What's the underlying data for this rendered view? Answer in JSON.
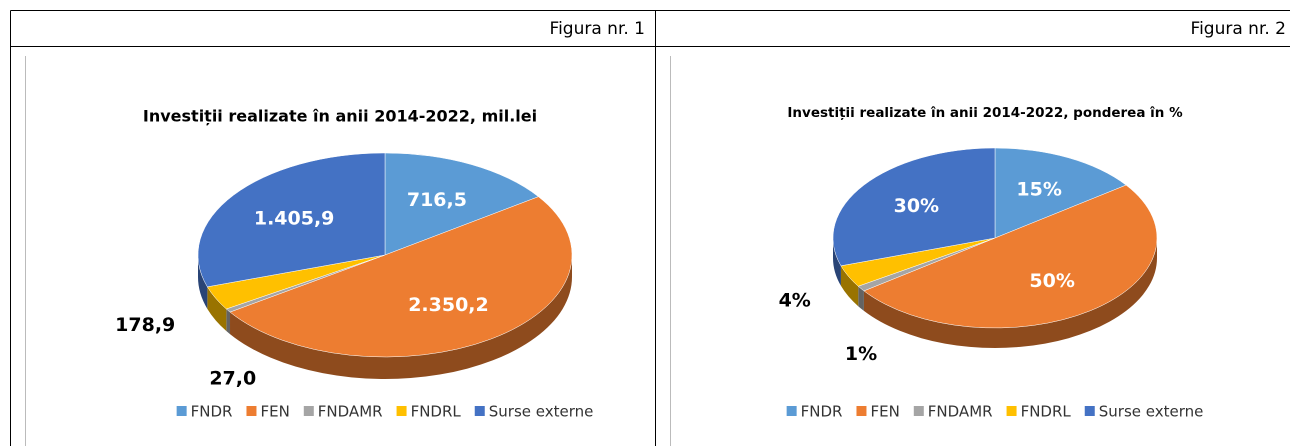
{
  "figure_labels": [
    "Figura nr. 1",
    "Figura nr. 2"
  ],
  "chart_data": [
    {
      "type": "pie",
      "title": "Investiții realizate în anii 2014-2022, mil.lei",
      "categories": [
        "FNDR",
        "FEN",
        "FNDAMR",
        "FNDRL",
        "Surse externe"
      ],
      "values": [
        716.5,
        2350.2,
        27.0,
        178.9,
        1405.9
      ],
      "value_labels": [
        "716,5",
        "2.350,2",
        "27,0",
        "178,9",
        "1.405,9"
      ],
      "colors": [
        "#5b9bd5",
        "#ed7d31",
        "#a5a5a5",
        "#ffc000",
        "#4472c4"
      ],
      "legend": "bottom"
    },
    {
      "type": "pie",
      "title": "Investiții realizate în anii 2014-2022, ponderea în %",
      "categories": [
        "FNDR",
        "FEN",
        "FNDAMR",
        "FNDRL",
        "Surse externe"
      ],
      "values": [
        15,
        50,
        1,
        4,
        30
      ],
      "value_labels": [
        "15%",
        "50%",
        "1%",
        "4%",
        "30%"
      ],
      "colors": [
        "#5b9bd5",
        "#ed7d31",
        "#a5a5a5",
        "#ffc000",
        "#4472c4"
      ],
      "legend": "bottom"
    }
  ]
}
